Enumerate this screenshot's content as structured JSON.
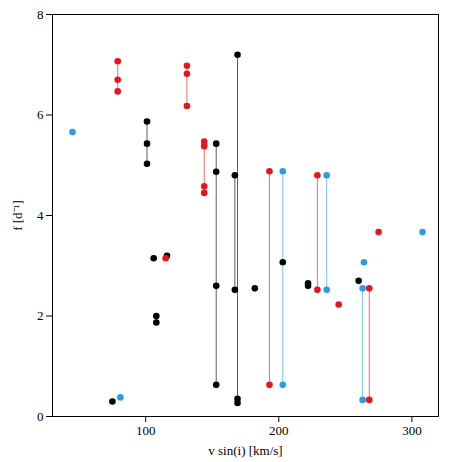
{
  "chart_data": {
    "type": "scatter",
    "x_label": "v sin(i) [km/s]",
    "y_label": "f [d⁻¹]",
    "xlim": [
      30,
      320
    ],
    "xticks": [
      100,
      200,
      300
    ],
    "ylim": [
      0,
      8
    ],
    "yticks": [
      0,
      2,
      4,
      6,
      8
    ],
    "grid": false,
    "series": [
      {
        "color": "#000000",
        "x": [
          75,
          101,
          106,
          108,
          116,
          153,
          167,
          169,
          182,
          203,
          222,
          260
        ],
        "values": [
          [
            0.3
          ],
          [
            5.03,
            5.43,
            5.87
          ],
          [
            3.15
          ],
          [
            1.87,
            2.0
          ],
          [
            3.2
          ],
          [
            0.63,
            2.6,
            4.87,
            5.43
          ],
          [
            2.52,
            4.8
          ],
          [
            0.27,
            0.35,
            7.2
          ],
          [
            2.55
          ],
          [
            3.07
          ],
          [
            2.6,
            2.65
          ],
          [
            2.7
          ]
        ]
      },
      {
        "color": "#e8141c",
        "x": [
          79,
          115,
          131,
          144,
          193,
          229,
          245,
          268,
          275
        ],
        "values": [
          [
            6.47,
            6.7,
            7.07
          ],
          [
            3.15
          ],
          [
            6.18,
            6.82,
            6.98
          ],
          [
            4.45,
            4.58,
            5.38,
            5.47
          ],
          [
            0.63,
            4.88
          ],
          [
            2.52,
            4.8
          ],
          [
            2.23
          ],
          [
            0.33,
            2.55
          ],
          [
            3.67
          ]
        ]
      },
      {
        "color": "#2a9de6",
        "x": [
          45,
          81,
          203,
          236,
          263,
          264,
          308
        ],
        "values": [
          [
            5.66
          ],
          [
            0.38
          ],
          [
            0.63,
            4.88
          ],
          [
            2.52,
            4.8
          ],
          [
            0.33,
            2.55
          ],
          [
            3.07
          ],
          [
            3.67
          ]
        ]
      }
    ]
  }
}
